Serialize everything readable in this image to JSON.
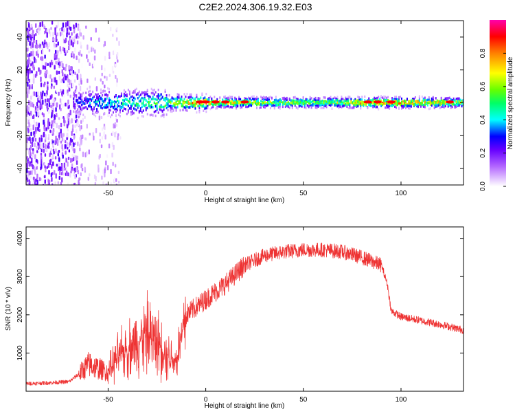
{
  "title": "C2E2.2024.306.19.32.E03",
  "chart_data": [
    {
      "type": "heatmap",
      "xlabel": "Height of straight line (km)",
      "ylabel": "Frequency (Hz)",
      "xlim": [
        -92,
        132
      ],
      "ylim": [
        -50,
        50
      ],
      "xticks": [
        -50,
        0,
        50,
        100
      ],
      "yticks": [
        -40,
        -20,
        0,
        20,
        40
      ],
      "colorbar": {
        "label": "Normalized spectral amplitude",
        "range": [
          0.0,
          1.0
        ],
        "ticks": [
          0.0,
          0.2,
          0.4,
          0.6,
          0.8
        ],
        "tick_labels": [
          "0.0",
          "0.2",
          "0.4",
          "0.6",
          "0.8"
        ],
        "colormap": [
          "#ffffff",
          "#e6ccff",
          "#b366ff",
          "#6600ff",
          "#0000ff",
          "#00ffff",
          "#00ff00",
          "#ffff00",
          "#ff8000",
          "#ff0000",
          "#ff00aa"
        ]
      },
      "ridge": [
        {
          "x": -66,
          "f": 0,
          "amp": 0.3
        },
        {
          "x": -55,
          "f": 0,
          "amp": 0.45
        },
        {
          "x": -40,
          "f": 0,
          "amp": 0.5
        },
        {
          "x": -30,
          "f": 0,
          "amp": 0.55
        },
        {
          "x": -20,
          "f": 0,
          "amp": 0.6
        },
        {
          "x": -5,
          "f": 0,
          "amp": 0.85
        },
        {
          "x": 20,
          "f": 0,
          "amp": 0.75
        },
        {
          "x": 60,
          "f": 0,
          "amp": 0.6
        },
        {
          "x": 85,
          "f": 0,
          "amp": 0.85
        },
        {
          "x": 95,
          "f": 0,
          "amp": 0.9
        },
        {
          "x": 132,
          "f": 0,
          "amp": 0.65
        }
      ],
      "grid": false
    },
    {
      "type": "line",
      "xlabel": "Height of straight line (km)",
      "ylabel": "SNR (10 * v/v)",
      "xlim": [
        -92,
        132
      ],
      "ylim": [
        0,
        4300
      ],
      "xticks": [
        -50,
        0,
        50,
        100
      ],
      "yticks": [
        1000,
        2000,
        3000,
        4000
      ],
      "color": "#ee3333",
      "series": [
        {
          "x": [
            -92,
            -80,
            -70,
            -65,
            -60,
            -55,
            -50,
            -45,
            -40,
            -35,
            -30,
            -25,
            -20,
            -15,
            -10,
            -5,
            0,
            10,
            20,
            30,
            40,
            50,
            60,
            70,
            80,
            85,
            90,
            93,
            95,
            100,
            110,
            120,
            132
          ],
          "values": [
            200,
            220,
            250,
            450,
            700,
            600,
            500,
            900,
            1100,
            1300,
            1500,
            1300,
            1000,
            800,
            2000,
            2200,
            2400,
            2800,
            3300,
            3550,
            3650,
            3700,
            3700,
            3650,
            3500,
            3400,
            3300,
            2800,
            2100,
            1950,
            1850,
            1750,
            1600
          ]
        }
      ],
      "grid": false
    }
  ]
}
